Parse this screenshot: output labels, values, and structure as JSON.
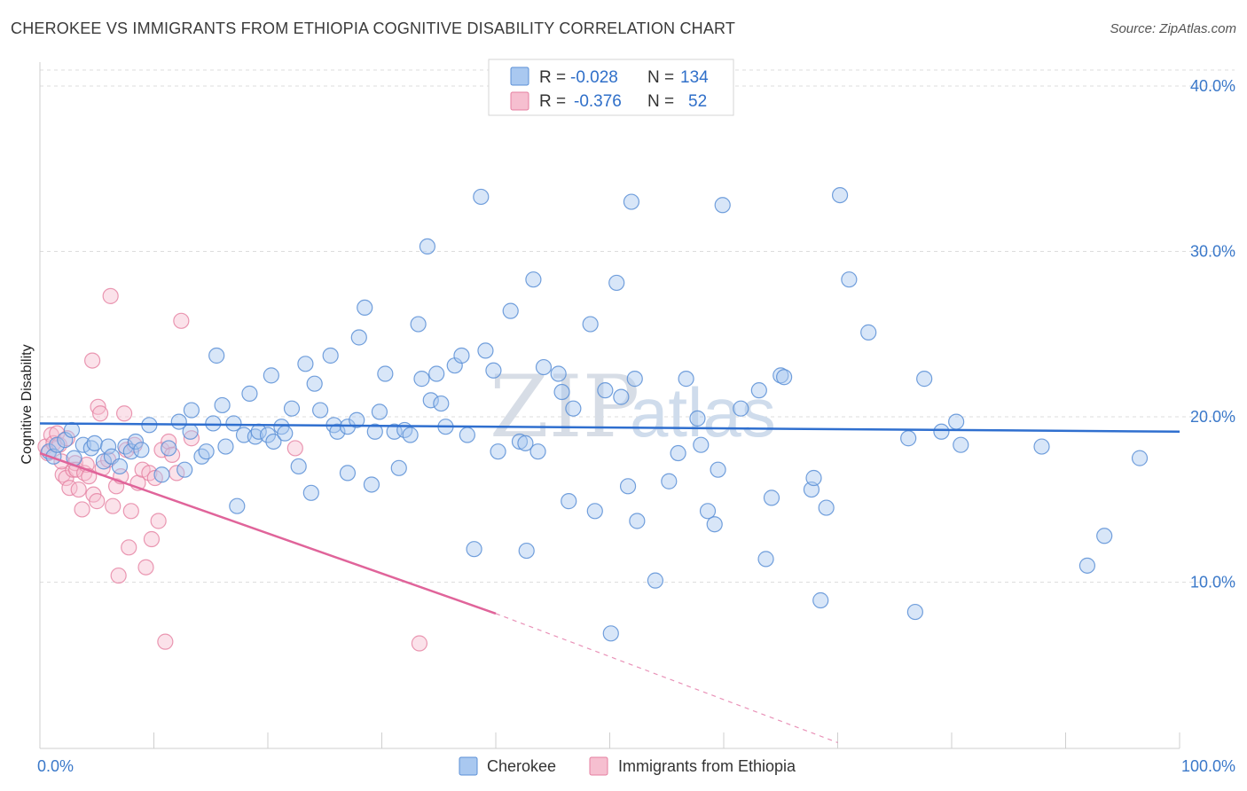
{
  "title": "CHEROKEE VS IMMIGRANTS FROM ETHIOPIA COGNITIVE DISABILITY CORRELATION CHART",
  "source": "Source: ZipAtlas.com",
  "watermark": {
    "zip": "ZIP",
    "atlas": "atlas"
  },
  "legend": {
    "r_label": "R =",
    "n_label": "N =",
    "rows": [
      {
        "r": "-0.028",
        "n": "134"
      },
      {
        "r": "-0.376",
        "n": "52"
      }
    ]
  },
  "bottom_legend": [
    "Cherokee",
    "Immigrants from Ethiopia"
  ],
  "colors": {
    "cherokee_fill": "#a9c8f0",
    "cherokee_stroke": "#5b8fd6",
    "cherokee_line": "#2f6fcf",
    "ethiopia_fill": "#f6bfd0",
    "ethiopia_stroke": "#e57fa0",
    "ethiopia_line": "#e0649a",
    "tick_text": "#3a78c9",
    "grid": "#dddddd"
  },
  "chart_data": {
    "type": "scatter",
    "title": "CHEROKEE VS IMMIGRANTS FROM ETHIOPIA COGNITIVE DISABILITY CORRELATION CHART",
    "xlabel": "",
    "ylabel": "Cognitive Disability",
    "xlim": [
      0,
      100
    ],
    "ylim": [
      0,
      42
    ],
    "x_tick_labels": [
      "0.0%",
      "100.0%"
    ],
    "y_ticks": [
      10,
      20,
      30,
      40
    ],
    "y_tick_labels": [
      "10.0%",
      "20.0%",
      "30.0%",
      "40.0%"
    ],
    "grid": true,
    "legend_position": "top-center",
    "series": [
      {
        "name": "Cherokee",
        "r": -0.028,
        "n": 134,
        "trend": {
          "x0": 0,
          "y0": 19.6,
          "x1": 100,
          "y1": 19.1
        },
        "points": [
          [
            0.8,
            17.9
          ],
          [
            1.2,
            17.6
          ],
          [
            1.5,
            18.3
          ],
          [
            2.2,
            18.6
          ],
          [
            2.8,
            19.2
          ],
          [
            3.0,
            17.5
          ],
          [
            3.8,
            18.3
          ],
          [
            4.5,
            18.1
          ],
          [
            4.8,
            18.4
          ],
          [
            5.6,
            17.3
          ],
          [
            6.0,
            18.2
          ],
          [
            6.3,
            17.6
          ],
          [
            7.0,
            17.0
          ],
          [
            7.5,
            18.2
          ],
          [
            8.0,
            17.9
          ],
          [
            8.4,
            18.5
          ],
          [
            8.9,
            18.0
          ],
          [
            9.6,
            19.5
          ],
          [
            10.7,
            16.5
          ],
          [
            11.3,
            18.1
          ],
          [
            12.2,
            19.7
          ],
          [
            12.7,
            16.8
          ],
          [
            13.2,
            19.1
          ],
          [
            13.3,
            20.4
          ],
          [
            14.2,
            17.6
          ],
          [
            14.6,
            17.9
          ],
          [
            15.2,
            19.6
          ],
          [
            15.5,
            23.7
          ],
          [
            16.0,
            20.7
          ],
          [
            16.3,
            18.2
          ],
          [
            17.0,
            19.6
          ],
          [
            17.3,
            14.6
          ],
          [
            17.9,
            18.9
          ],
          [
            18.4,
            21.4
          ],
          [
            18.9,
            18.8
          ],
          [
            19.2,
            19.1
          ],
          [
            20.0,
            18.9
          ],
          [
            20.3,
            22.5
          ],
          [
            20.5,
            18.5
          ],
          [
            21.2,
            19.4
          ],
          [
            21.5,
            19.0
          ],
          [
            22.1,
            20.5
          ],
          [
            22.7,
            17.0
          ],
          [
            23.3,
            23.2
          ],
          [
            23.8,
            15.4
          ],
          [
            24.1,
            22.0
          ],
          [
            24.6,
            20.4
          ],
          [
            25.5,
            23.7
          ],
          [
            25.8,
            19.5
          ],
          [
            26.1,
            19.1
          ],
          [
            27.0,
            19.4
          ],
          [
            27.0,
            16.6
          ],
          [
            27.8,
            19.8
          ],
          [
            28.0,
            24.8
          ],
          [
            28.5,
            26.6
          ],
          [
            29.1,
            15.9
          ],
          [
            29.4,
            19.1
          ],
          [
            29.8,
            20.3
          ],
          [
            30.3,
            22.6
          ],
          [
            31.1,
            19.1
          ],
          [
            31.5,
            16.9
          ],
          [
            32.0,
            19.2
          ],
          [
            32.5,
            18.9
          ],
          [
            33.2,
            25.6
          ],
          [
            33.5,
            22.3
          ],
          [
            34.0,
            30.3
          ],
          [
            34.3,
            21.0
          ],
          [
            34.8,
            22.6
          ],
          [
            35.2,
            20.8
          ],
          [
            35.6,
            19.4
          ],
          [
            36.4,
            23.1
          ],
          [
            37.0,
            23.7
          ],
          [
            37.5,
            18.9
          ],
          [
            38.1,
            12.0
          ],
          [
            38.7,
            33.3
          ],
          [
            39.1,
            24.0
          ],
          [
            39.8,
            22.8
          ],
          [
            40.2,
            17.9
          ],
          [
            41.3,
            26.4
          ],
          [
            42.1,
            18.5
          ],
          [
            42.6,
            18.4
          ],
          [
            42.7,
            11.9
          ],
          [
            43.3,
            28.3
          ],
          [
            43.7,
            17.9
          ],
          [
            44.2,
            23.0
          ],
          [
            45.5,
            22.6
          ],
          [
            45.8,
            21.5
          ],
          [
            46.4,
            14.9
          ],
          [
            46.8,
            20.5
          ],
          [
            48.3,
            25.6
          ],
          [
            48.7,
            14.3
          ],
          [
            49.6,
            21.6
          ],
          [
            50.1,
            6.9
          ],
          [
            50.6,
            28.1
          ],
          [
            51.0,
            21.2
          ],
          [
            51.6,
            15.8
          ],
          [
            51.9,
            33.0
          ],
          [
            52.2,
            22.3
          ],
          [
            52.4,
            13.7
          ],
          [
            54.0,
            10.1
          ],
          [
            55.2,
            16.1
          ],
          [
            56.0,
            17.8
          ],
          [
            56.7,
            22.3
          ],
          [
            57.7,
            19.9
          ],
          [
            58.0,
            18.3
          ],
          [
            58.6,
            14.3
          ],
          [
            59.2,
            13.5
          ],
          [
            59.5,
            16.8
          ],
          [
            59.9,
            32.8
          ],
          [
            61.5,
            20.5
          ],
          [
            63.1,
            21.6
          ],
          [
            63.7,
            11.4
          ],
          [
            64.2,
            15.1
          ],
          [
            65.0,
            22.5
          ],
          [
            65.3,
            22.4
          ],
          [
            67.7,
            15.6
          ],
          [
            67.9,
            16.3
          ],
          [
            68.5,
            8.9
          ],
          [
            69.0,
            14.5
          ],
          [
            70.2,
            33.4
          ],
          [
            71.0,
            28.3
          ],
          [
            72.7,
            25.1
          ],
          [
            76.2,
            18.7
          ],
          [
            76.8,
            8.2
          ],
          [
            77.6,
            22.3
          ],
          [
            79.1,
            19.1
          ],
          [
            80.4,
            19.7
          ],
          [
            80.8,
            18.3
          ],
          [
            87.9,
            18.2
          ],
          [
            91.9,
            11.0
          ],
          [
            93.4,
            12.8
          ],
          [
            96.5,
            17.5
          ]
        ]
      },
      {
        "name": "Immigrants from Ethiopia",
        "r": -0.376,
        "n": 52,
        "trend": {
          "x0": 0,
          "y0": 17.8,
          "x1": 40,
          "y1": 8.1
        },
        "trend_dashed_to": {
          "x": 70,
          "y": 0.3
        },
        "points": [
          [
            0.5,
            18.2
          ],
          [
            0.7,
            17.8
          ],
          [
            1.0,
            18.9
          ],
          [
            1.2,
            18.4
          ],
          [
            1.5,
            19.0
          ],
          [
            1.7,
            18.3
          ],
          [
            2.0,
            16.5
          ],
          [
            2.3,
            16.3
          ],
          [
            2.6,
            15.7
          ],
          [
            2.9,
            16.8
          ],
          [
            3.1,
            17.2
          ],
          [
            3.2,
            16.8
          ],
          [
            3.4,
            15.6
          ],
          [
            3.7,
            14.4
          ],
          [
            3.9,
            16.6
          ],
          [
            4.1,
            17.1
          ],
          [
            4.3,
            16.4
          ],
          [
            4.6,
            23.4
          ],
          [
            4.7,
            15.3
          ],
          [
            5.0,
            14.9
          ],
          [
            5.1,
            20.6
          ],
          [
            5.3,
            20.2
          ],
          [
            5.5,
            16.9
          ],
          [
            6.0,
            17.4
          ],
          [
            6.2,
            27.3
          ],
          [
            6.4,
            14.6
          ],
          [
            6.7,
            15.8
          ],
          [
            6.9,
            10.4
          ],
          [
            7.1,
            16.4
          ],
          [
            7.4,
            20.2
          ],
          [
            7.6,
            18.0
          ],
          [
            7.8,
            12.1
          ],
          [
            8.0,
            14.3
          ],
          [
            8.3,
            18.3
          ],
          [
            8.6,
            16.0
          ],
          [
            9.0,
            16.8
          ],
          [
            9.3,
            10.9
          ],
          [
            9.6,
            16.6
          ],
          [
            9.8,
            12.6
          ],
          [
            10.1,
            16.3
          ],
          [
            10.4,
            13.7
          ],
          [
            10.7,
            18.0
          ],
          [
            11.0,
            6.4
          ],
          [
            11.3,
            18.5
          ],
          [
            11.6,
            17.7
          ],
          [
            12.0,
            16.6
          ],
          [
            12.4,
            25.8
          ],
          [
            13.3,
            18.7
          ],
          [
            1.9,
            17.3
          ],
          [
            2.4,
            18.7
          ],
          [
            22.4,
            18.1
          ],
          [
            33.3,
            6.3
          ]
        ]
      }
    ]
  }
}
